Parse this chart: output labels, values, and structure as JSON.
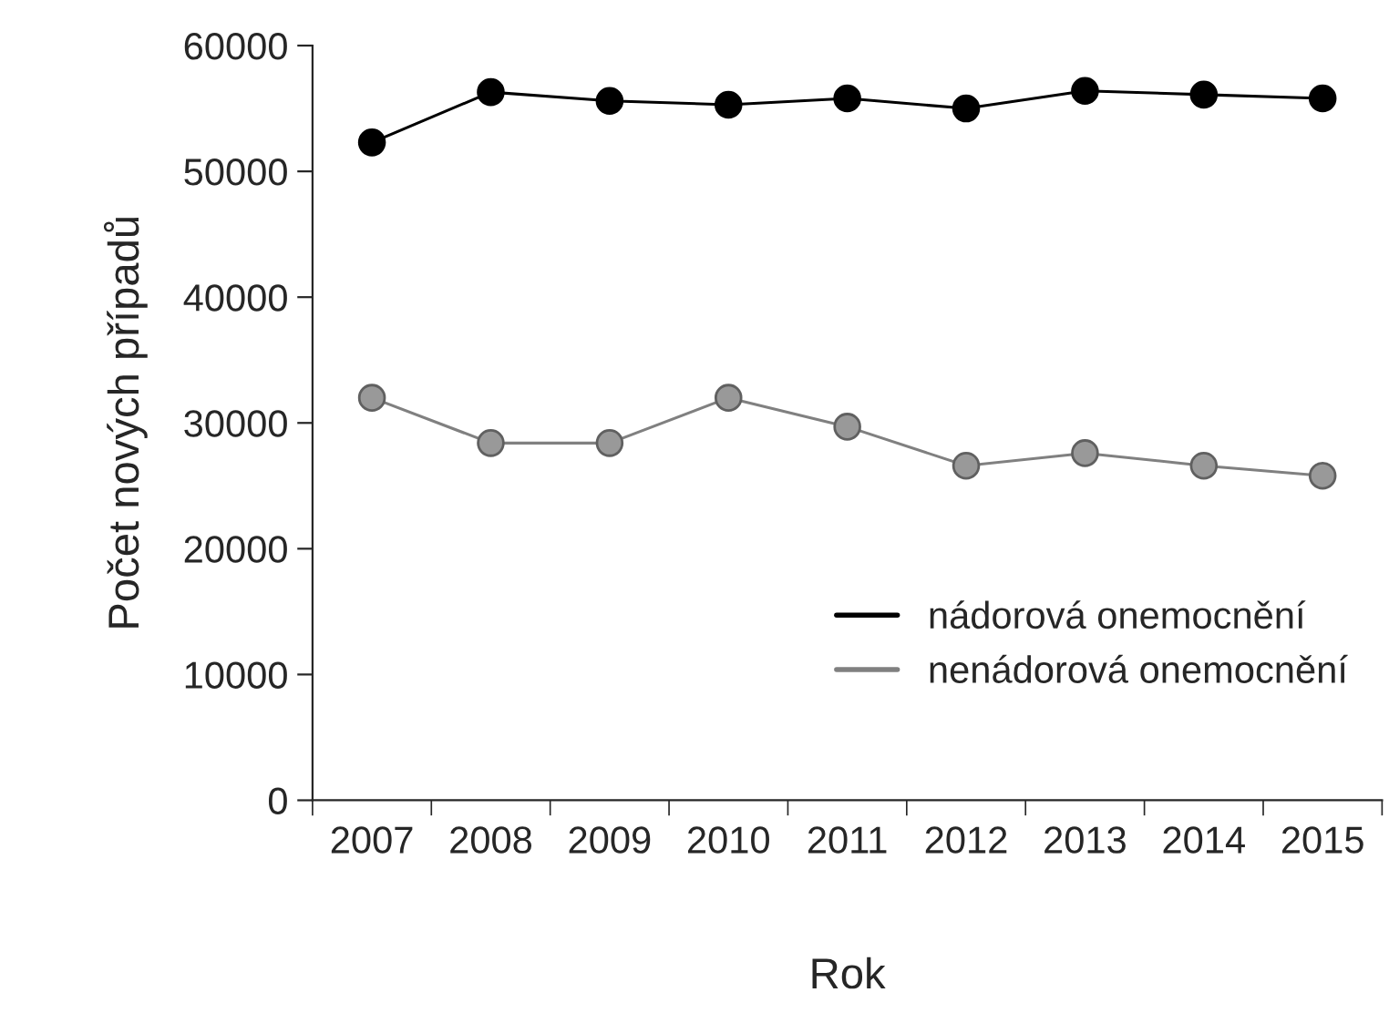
{
  "chart_data": {
    "type": "line",
    "xlabel": "Rok",
    "ylabel": "Počet nových případů",
    "categories": [
      "2007",
      "2008",
      "2009",
      "2010",
      "2011",
      "2012",
      "2013",
      "2014",
      "2015"
    ],
    "series": [
      {
        "name": "nádorová onemocnění",
        "color": "#000000",
        "values": [
          52300,
          56300,
          55600,
          55300,
          55800,
          55000,
          56400,
          56100,
          55800
        ]
      },
      {
        "name": "nenádorová onemocnění",
        "color": "#999999",
        "values": [
          32000,
          28400,
          28400,
          32000,
          29700,
          26600,
          27600,
          26600,
          25800
        ]
      }
    ],
    "ylim": [
      0,
      60000
    ],
    "yticks": [
      0,
      10000,
      20000,
      30000,
      40000,
      50000,
      60000
    ],
    "grid": false,
    "legend": "bottom right",
    "marker": "circle",
    "line_style": "solid"
  }
}
